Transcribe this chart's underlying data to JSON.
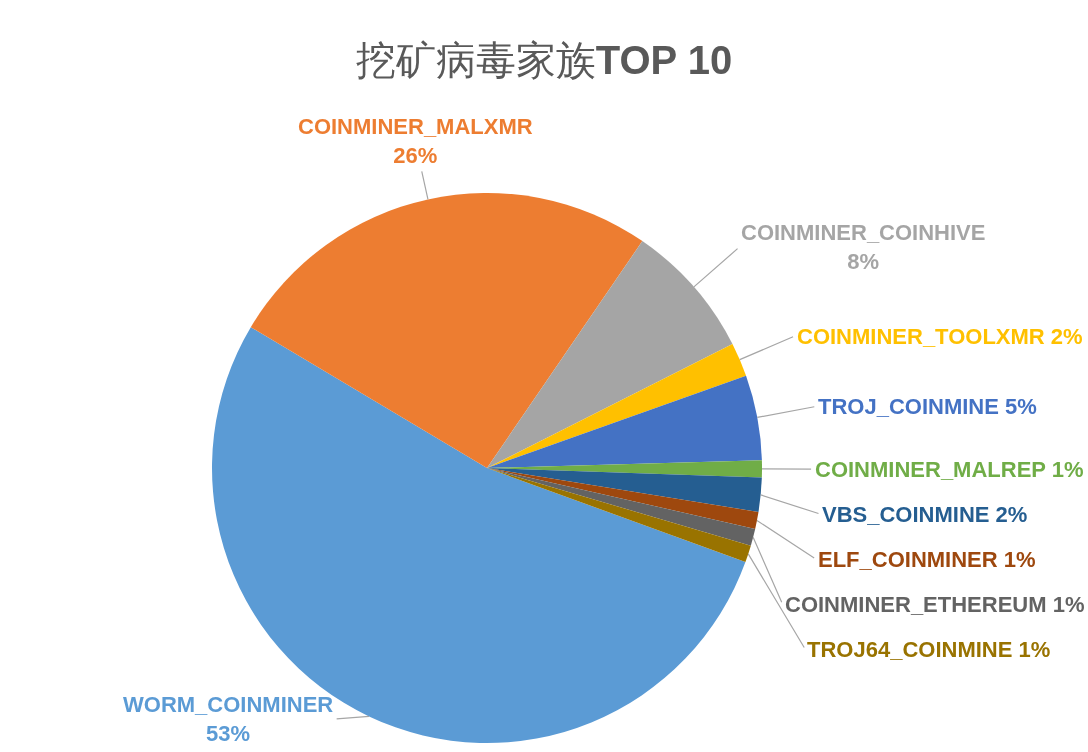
{
  "chart_data": {
    "type": "pie",
    "title": "挖矿病毒家族TOP 10",
    "categories": [
      "WORM_COINMINER",
      "COINMINER_MALXMR",
      "COINMINER_COINHIVE",
      "COINMINER_TOOLXMR",
      "TROJ_COINMINE",
      "COINMINER_MALREP",
      "VBS_COINMINE",
      "ELF_COINMINER",
      "COINMINER_ETHEREUM",
      "TROJ64_COINMINE"
    ],
    "values": [
      53,
      26,
      8,
      2,
      5,
      1,
      2,
      1,
      1,
      1
    ],
    "colors": [
      "#5b9bd5",
      "#ed7d31",
      "#a5a5a5",
      "#ffc000",
      "#4472c4",
      "#70ad47",
      "#255e91",
      "#9e480e",
      "#636363",
      "#997300"
    ],
    "value_labels": [
      "53%",
      "26%",
      "8%",
      "2%",
      "5%",
      "1%",
      "2%",
      "1%",
      "1%",
      "1%"
    ]
  }
}
